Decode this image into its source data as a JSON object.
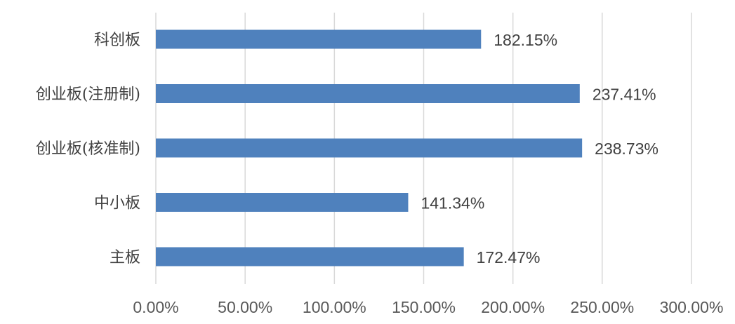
{
  "chart_data": {
    "type": "bar",
    "orientation": "horizontal",
    "categories": [
      "科创板",
      "创业板(注册制)",
      "创业板(核准制)",
      "中小板",
      "主板"
    ],
    "values": [
      182.15,
      237.41,
      238.73,
      141.34,
      172.47
    ],
    "value_labels": [
      "182.15%",
      "237.41%",
      "238.73%",
      "141.34%",
      "172.47%"
    ],
    "xlim": [
      0,
      300
    ],
    "x_ticks": [
      0,
      50,
      100,
      150,
      200,
      250,
      300
    ],
    "x_tick_labels": [
      "0.00%",
      "50.00%",
      "100.00%",
      "150.00%",
      "200.00%",
      "250.00%",
      "300.00%"
    ],
    "title": "",
    "xlabel": "",
    "ylabel": "",
    "grid": "vertical",
    "legend": "none",
    "bar_color": "#4f81bd",
    "grid_color": "#d9d9d9"
  }
}
